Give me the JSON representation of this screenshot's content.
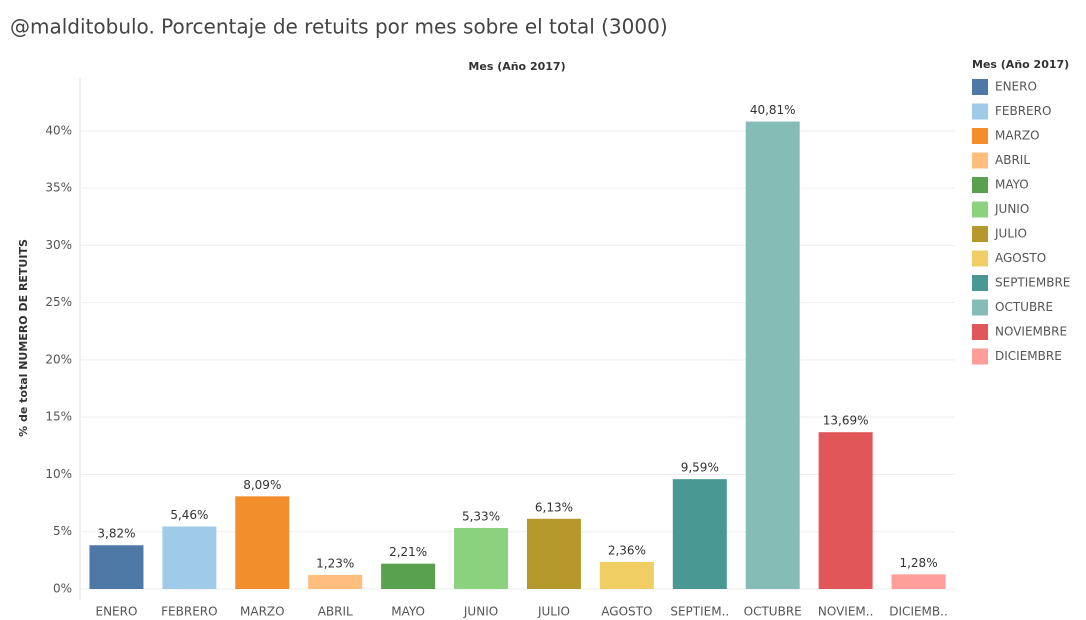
{
  "chart_data": {
    "type": "bar",
    "title": "@malditobulo. Porcentaje de retuits por mes sobre el total (3000)",
    "header": "Mes (Año 2017)",
    "y_label": "% de total NUMERO DE RETUITS",
    "categories": [
      "ENERO",
      "FEBRERO",
      "MARZO",
      "ABRIL",
      "MAYO",
      "JUNIO",
      "JULIO",
      "AGOSTO",
      "SEPTIEM..",
      "OCTUBRE",
      "NOVIEM..",
      "DICIEMB.."
    ],
    "values": [
      3.82,
      5.46,
      8.09,
      1.23,
      2.21,
      5.33,
      6.13,
      2.36,
      9.59,
      40.81,
      13.69,
      1.28
    ],
    "value_labels": [
      "3,82%",
      "5,46%",
      "8,09%",
      "1,23%",
      "2,21%",
      "5,33%",
      "6,13%",
      "2,36%",
      "9,59%",
      "40,81%",
      "13,69%",
      "1,28%"
    ],
    "colors": [
      "#4e79a7",
      "#a0cbe8",
      "#f28e2b",
      "#ffbe7d",
      "#59a14f",
      "#8cd17d",
      "#b6992d",
      "#f1ce63",
      "#499894",
      "#86bcb6",
      "#e15759",
      "#ff9d9a"
    ],
    "legend": {
      "title": "Mes (Año 2017)",
      "labels": [
        "ENERO",
        "FEBRERO",
        "MARZO",
        "ABRIL",
        "MAYO",
        "JUNIO",
        "JULIO",
        "AGOSTO",
        "SEPTIEMBRE",
        "OCTUBRE",
        "NOVIEMBRE",
        "DICIEMBRE"
      ]
    },
    "ylim": [
      0,
      44
    ],
    "yticks": [
      {
        "value": 0,
        "label": "0%"
      },
      {
        "value": 5,
        "label": "5%"
      },
      {
        "value": 10,
        "label": "10%"
      },
      {
        "value": 15,
        "label": "15%"
      },
      {
        "value": 20,
        "label": "20%"
      },
      {
        "value": 25,
        "label": "25%"
      },
      {
        "value": 30,
        "label": "30%"
      },
      {
        "value": 35,
        "label": "35%"
      },
      {
        "value": 40,
        "label": "40%"
      }
    ],
    "grid": true
  }
}
